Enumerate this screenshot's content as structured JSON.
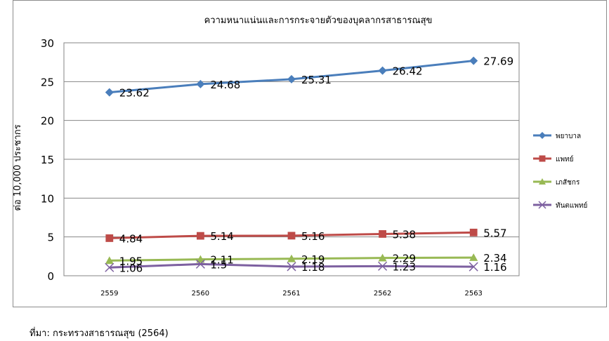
{
  "chart_data": {
    "type": "line",
    "title": "ความหนาแน่นและการกระจายตัวของบุคลากรสาธารณสุข",
    "xlabel": "",
    "ylabel": "ต่อ 10,000 ประชากร",
    "categories": [
      "2559",
      "2560",
      "2561",
      "2562",
      "2563"
    ],
    "ylim": [
      0,
      30
    ],
    "yticks": [
      0,
      5,
      10,
      15,
      20,
      25,
      30
    ],
    "grid": true,
    "legend_position": "right",
    "series": [
      {
        "name": "พยาบาล",
        "values": [
          23.62,
          24.68,
          25.31,
          26.42,
          27.69
        ],
        "labels": [
          "23.62",
          "24.68",
          "25.31",
          "26.42",
          "27.69"
        ],
        "color": "#4a7ebb",
        "marker": "diamond"
      },
      {
        "name": "แพทย์",
        "values": [
          4.84,
          5.14,
          5.16,
          5.38,
          5.57
        ],
        "labels": [
          "4.84",
          "5.14",
          "5.16",
          "5.38",
          "5.57"
        ],
        "color": "#be4b48",
        "marker": "square"
      },
      {
        "name": "เภสัชกร",
        "values": [
          1.95,
          2.11,
          2.19,
          2.29,
          2.34
        ],
        "labels": [
          "1.95",
          "2.11",
          "2.19",
          "2.29",
          "2.34"
        ],
        "color": "#98b954",
        "marker": "triangle"
      },
      {
        "name": "ทันตแพทย์",
        "values": [
          1.06,
          1.5,
          1.18,
          1.23,
          1.16
        ],
        "labels": [
          "1.06",
          "1.5",
          "1.18",
          "1.23",
          "1.16"
        ],
        "color": "#7d60a0",
        "marker": "x"
      }
    ]
  },
  "footer": {
    "source": "ที่มา: กระทรวงสาธารณสุข (2564)"
  }
}
